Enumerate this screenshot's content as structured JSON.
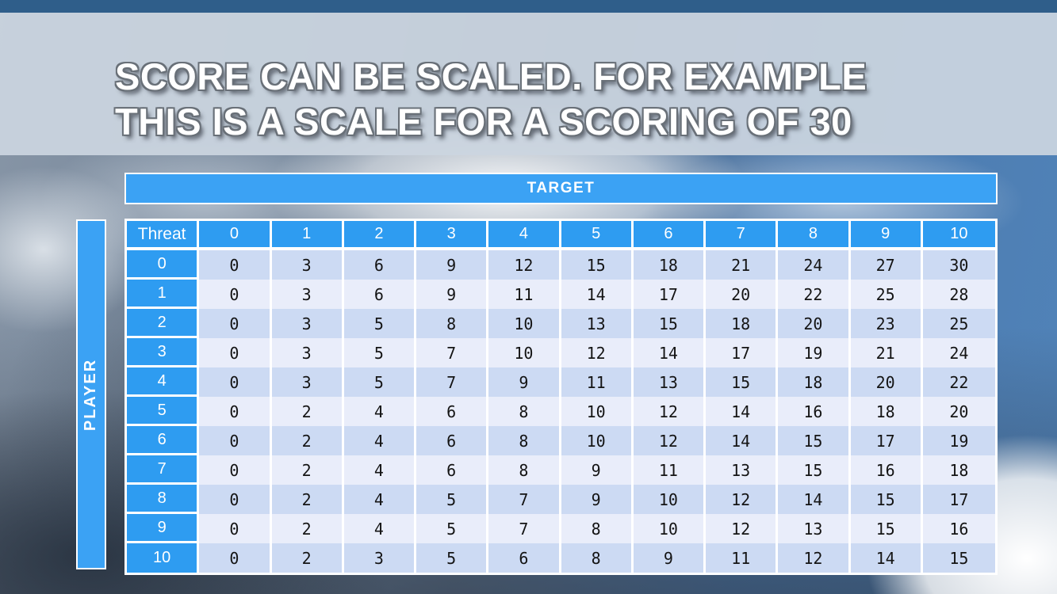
{
  "slide": {
    "title_line1": "SCORE CAN BE SCALED. FOR EXAMPLE",
    "title_line2": "THIS IS A SCALE FOR A SCORING OF 30"
  },
  "axes": {
    "top_label": "TARGET",
    "left_label": "PLAYER"
  },
  "chart_data": {
    "type": "table",
    "title": "Score scale matrix for a scoring of 30",
    "corner_header": "Threat",
    "column_headers": [
      "0",
      "1",
      "2",
      "3",
      "4",
      "5",
      "6",
      "7",
      "8",
      "9",
      "10"
    ],
    "row_headers": [
      "0",
      "1",
      "2",
      "3",
      "4",
      "5",
      "6",
      "7",
      "8",
      "9",
      "10"
    ],
    "rows": [
      [
        0,
        3,
        6,
        9,
        12,
        15,
        18,
        21,
        24,
        27,
        30
      ],
      [
        0,
        3,
        6,
        9,
        11,
        14,
        17,
        20,
        22,
        25,
        28
      ],
      [
        0,
        3,
        5,
        8,
        10,
        13,
        15,
        18,
        20,
        23,
        25
      ],
      [
        0,
        3,
        5,
        7,
        10,
        12,
        14,
        17,
        19,
        21,
        24
      ],
      [
        0,
        3,
        5,
        7,
        9,
        11,
        13,
        15,
        18,
        20,
        22
      ],
      [
        0,
        2,
        4,
        6,
        8,
        10,
        12,
        14,
        16,
        18,
        20
      ],
      [
        0,
        2,
        4,
        6,
        8,
        10,
        12,
        14,
        15,
        17,
        19
      ],
      [
        0,
        2,
        4,
        6,
        8,
        9,
        11,
        13,
        15,
        16,
        18
      ],
      [
        0,
        2,
        4,
        5,
        7,
        9,
        10,
        12,
        14,
        15,
        17
      ],
      [
        0,
        2,
        4,
        5,
        7,
        8,
        10,
        12,
        13,
        15,
        16
      ],
      [
        0,
        2,
        3,
        5,
        6,
        8,
        9,
        11,
        12,
        14,
        15
      ]
    ]
  },
  "colors": {
    "accent_blue": "#3ba2f4",
    "header_cell_blue": "#2e9cf1",
    "band_dark": "#ccdaf3",
    "band_light": "#e9edfa",
    "top_strip": "#2f5e8a",
    "banner": "#cbd5e0",
    "cell_text": "#141414",
    "header_text": "#ffffff"
  }
}
